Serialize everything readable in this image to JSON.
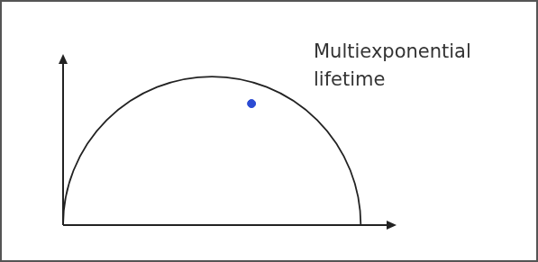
{
  "chart_data": {
    "type": "scatter",
    "annotation": "Multiexponential lifetime",
    "series": [
      {
        "color": "#2b4bd3",
        "marker": "circle",
        "x": [
          0.633
        ],
        "values": [
          0.409
        ]
      }
    ],
    "reference_circle": {
      "center": [
        0.5,
        0
      ],
      "radius": 0.5
    },
    "xlim": [
      0,
      1.12
    ],
    "ylim": [
      0,
      0.576
    ],
    "grid": false,
    "tick_labels": false
  }
}
